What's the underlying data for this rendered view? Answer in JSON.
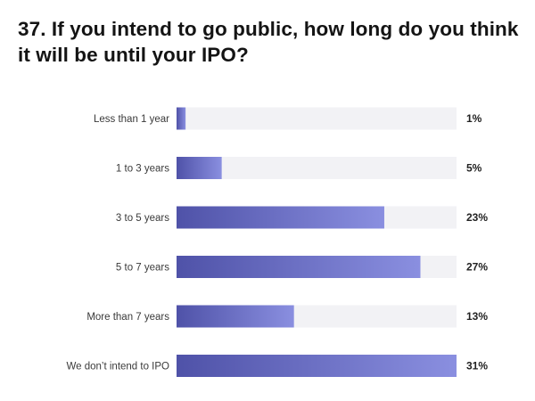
{
  "title": "37. If you intend to go public, how long do you think it will be until your IPO?",
  "colors": {
    "track": "#f2f2f5",
    "bar_start": "#4f52a8",
    "bar_end": "#8a8fe0",
    "text": "#141414"
  },
  "chart_data": {
    "type": "bar",
    "orientation": "horizontal",
    "categories": [
      "Less than 1 year",
      "1 to 3 years",
      "3 to 5 years",
      "5 to 7 years",
      "More than 7 years",
      "We don’t intend to IPO"
    ],
    "values": [
      1,
      5,
      23,
      27,
      13,
      31
    ],
    "value_labels": [
      "1%",
      "5%",
      "23%",
      "27%",
      "13%",
      "31%"
    ],
    "xlim": [
      0,
      31
    ],
    "unit": "%",
    "grid": false,
    "legend": "none"
  }
}
